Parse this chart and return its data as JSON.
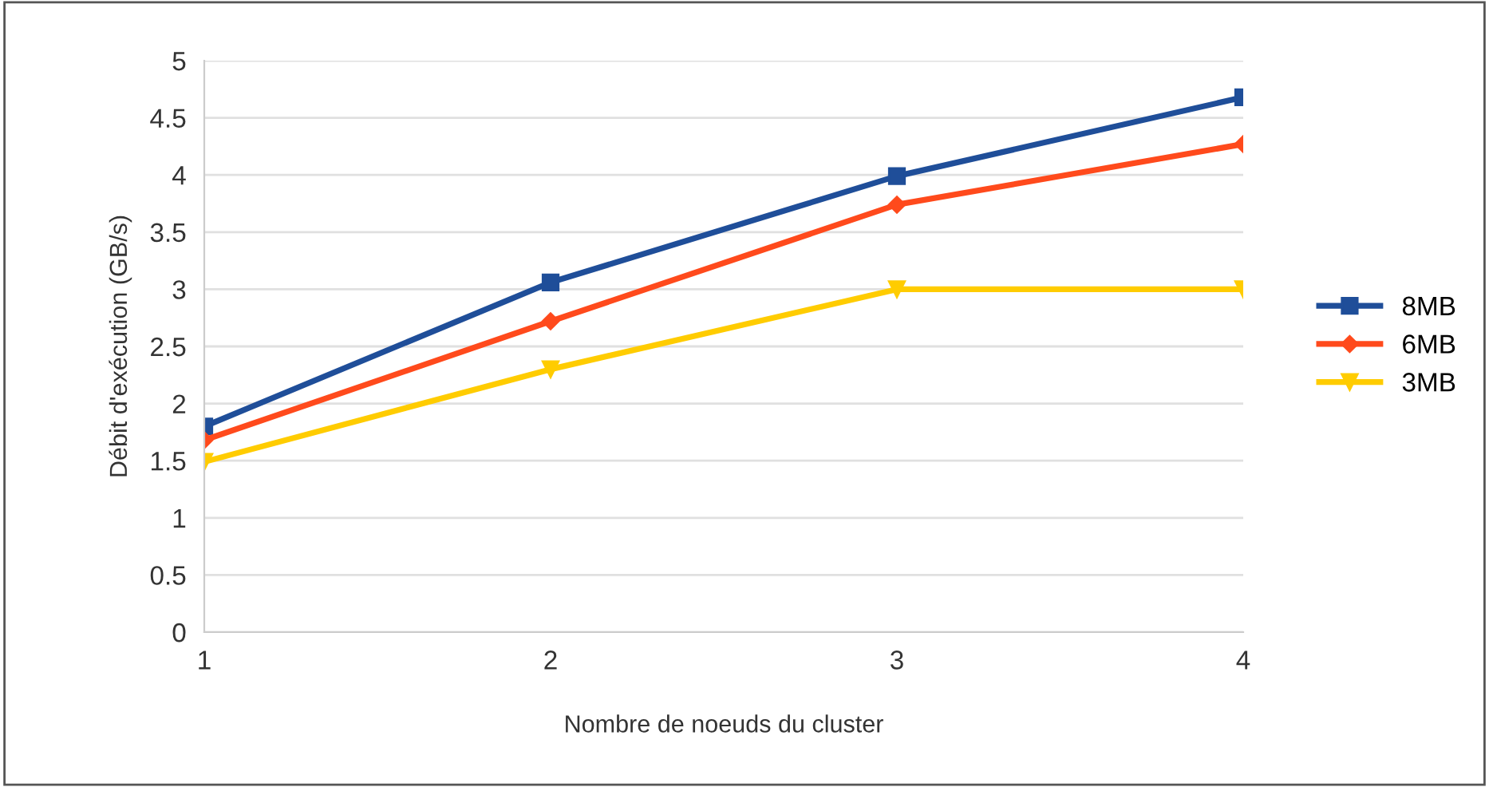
{
  "chart_data": {
    "type": "line",
    "xlabel": "Nombre de noeuds du cluster",
    "ylabel": "Débit d'exécution (GB/s)",
    "categories": [
      "1",
      "2",
      "3",
      "4"
    ],
    "series": [
      {
        "name": "8MB",
        "color": "#1f4e99",
        "marker": "square",
        "values": [
          1.8,
          3.06,
          3.99,
          4.68
        ]
      },
      {
        "name": "6MB",
        "color": "#ff4a1c",
        "marker": "diamond",
        "values": [
          1.68,
          2.72,
          3.74,
          4.27
        ]
      },
      {
        "name": "3MB",
        "color": "#ffcc00",
        "marker": "triangle",
        "values": [
          1.49,
          2.3,
          3.0,
          3.0
        ]
      }
    ],
    "ylim": [
      0,
      5
    ],
    "yticks": [
      0,
      0.5,
      1,
      1.5,
      2,
      2.5,
      3,
      3.5,
      4,
      4.5,
      5
    ],
    "grid": "y",
    "legend": "right",
    "line_style": "solid"
  }
}
